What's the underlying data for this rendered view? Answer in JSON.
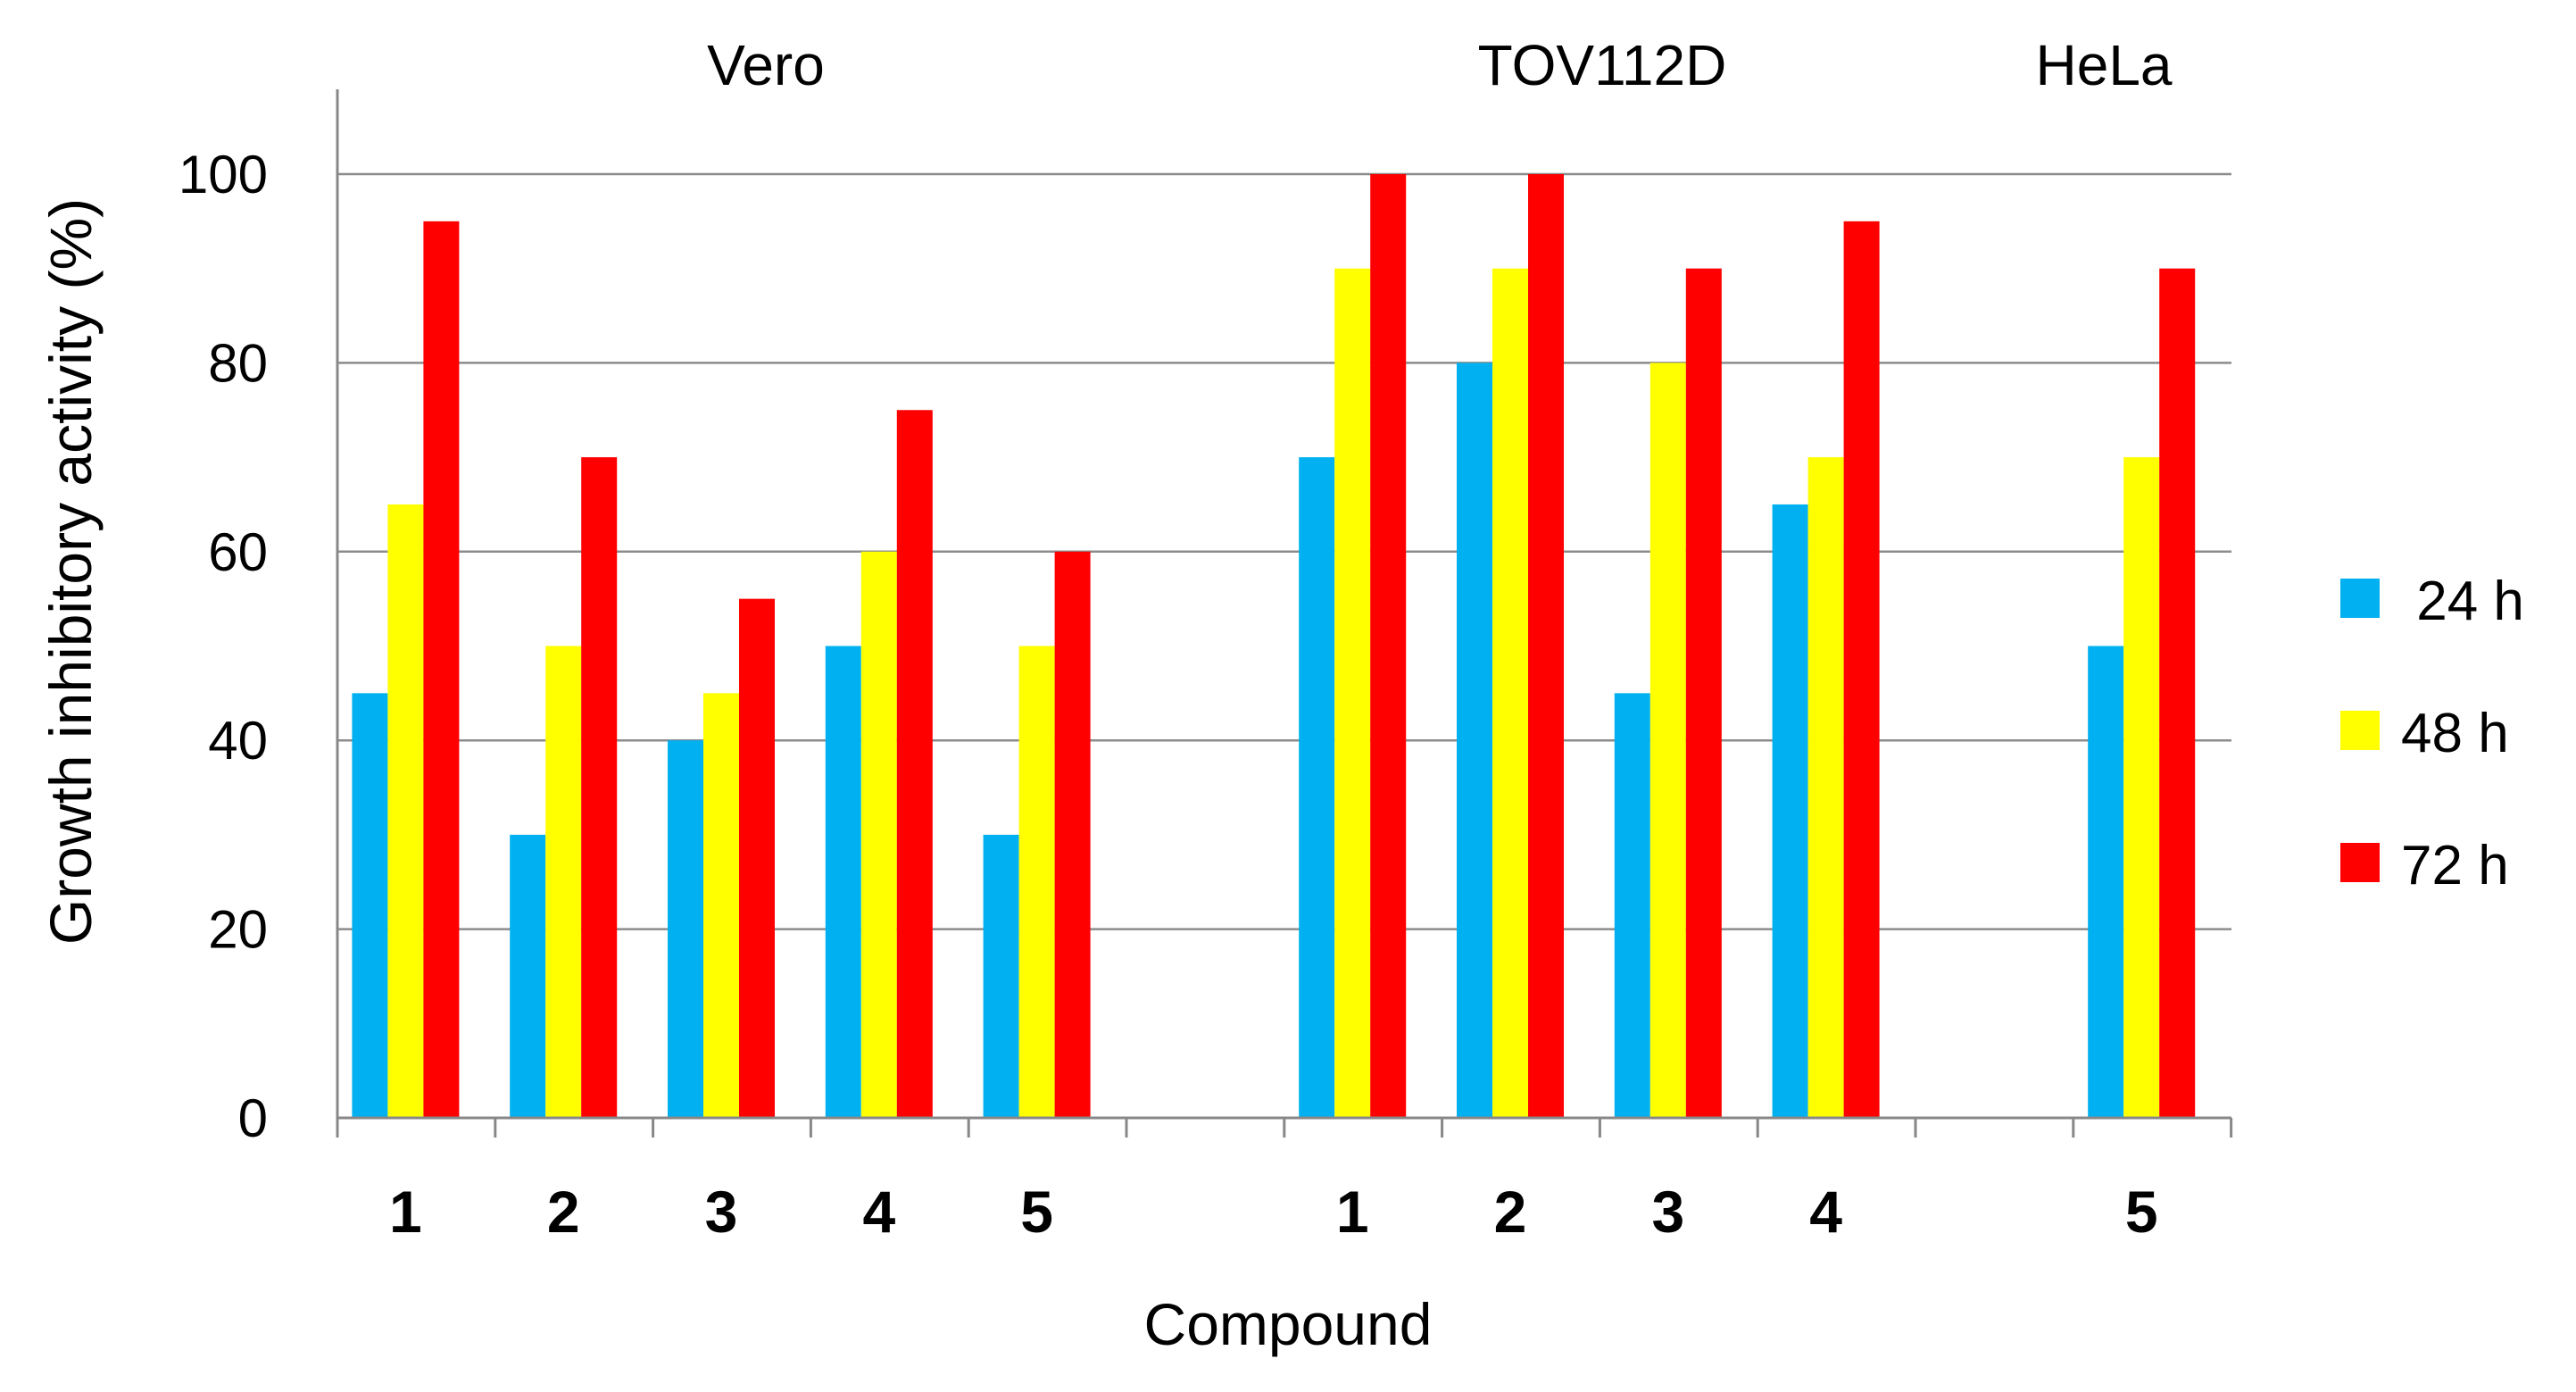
{
  "chart_data": {
    "type": "bar",
    "title": "",
    "xlabel": "Compound",
    "ylabel": "Growth inhibitory activity  (%)",
    "ylim": [
      0,
      100
    ],
    "yticks": [
      "0",
      "20",
      "40",
      "60",
      "80",
      "100"
    ],
    "grid": true,
    "legend_position": "right",
    "groups": [
      {
        "label": "Vero",
        "categories": [
          "1",
          "2",
          "3",
          "4",
          "5"
        ]
      },
      {
        "label": "TOV112D",
        "categories": [
          "1",
          "2",
          "3",
          "4"
        ]
      },
      {
        "label": "HeLa",
        "categories": [
          "5"
        ]
      }
    ],
    "series": [
      {
        "name": " 24 h",
        "color": "#00B0F0",
        "values": [
          45,
          30,
          40,
          50,
          30,
          70,
          80,
          45,
          65,
          50
        ]
      },
      {
        "name": "48 h",
        "color": "#FFFF00",
        "values": [
          65,
          50,
          45,
          60,
          50,
          90,
          90,
          80,
          70,
          70
        ]
      },
      {
        "name": "72 h",
        "color": "#FF0000",
        "values": [
          95,
          70,
          55,
          75,
          60,
          100,
          100,
          90,
          95,
          90
        ]
      }
    ]
  }
}
